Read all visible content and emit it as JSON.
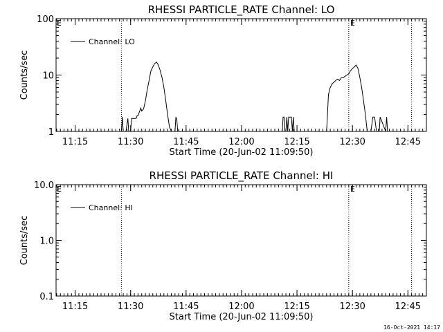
{
  "chart_data": [
    {
      "type": "line",
      "title": "RHESSI PARTICLE_RATE Channel: LO",
      "xlabel": "Start Time (20-Jun-02 11:09:50)",
      "ylabel": "Counts/sec",
      "y_scale": "log",
      "ylim": [
        1,
        100
      ],
      "y_ticks": [
        "1",
        "10",
        "100"
      ],
      "xlim": [
        "11:09:50",
        "12:50:00"
      ],
      "x_ticks": [
        "11:15",
        "11:30",
        "11:45",
        "12:00",
        "12:15",
        "12:30",
        "12:45"
      ],
      "grid": false,
      "legend": {
        "position": "top-left",
        "entries": [
          "Channel: LO"
        ]
      },
      "markers": [
        {
          "time": "11:27:30",
          "label": ""
        },
        {
          "time": "12:29:00",
          "label": "E"
        },
        {
          "time": "12:46:00",
          "label": ""
        }
      ],
      "series": [
        {
          "name": "Channel: LO",
          "x": [
            "11:27:30",
            "11:27:45",
            "11:28:00",
            "11:28:45",
            "11:29:15",
            "11:29:30",
            "11:30:00",
            "11:30:15",
            "11:31:30",
            "11:31:45",
            "11:32:00",
            "11:32:45",
            "11:33:00",
            "11:33:30",
            "11:34:00",
            "11:34:30",
            "11:35:00",
            "11:35:30",
            "11:36:00",
            "11:36:30",
            "11:37:00",
            "11:37:30",
            "11:38:00",
            "11:38:30",
            "11:39:00",
            "11:39:30",
            "11:40:00",
            "11:40:30",
            "11:41:00",
            "11:41:30",
            "11:42:00",
            "11:42:15",
            "11:42:30",
            "11:42:45",
            "12:11:00",
            "12:11:15",
            "12:11:30",
            "12:11:45",
            "12:12:00",
            "12:12:15",
            "12:12:30",
            "12:12:45",
            "12:13:00",
            "12:13:30",
            "12:13:45",
            "12:14:00",
            "12:14:15",
            "12:23:00",
            "12:23:15",
            "12:23:30",
            "12:24:00",
            "12:24:30",
            "12:25:00",
            "12:25:30",
            "12:26:00",
            "12:26:30",
            "12:27:00",
            "12:27:30",
            "12:28:00",
            "12:28:30",
            "12:29:00",
            "12:29:30",
            "12:30:00",
            "12:30:30",
            "12:31:00",
            "12:31:30",
            "12:32:00",
            "12:32:30",
            "12:33:00",
            "12:33:30",
            "12:34:00",
            "12:34:30",
            "12:35:00",
            "12:35:30",
            "12:36:00",
            "12:36:30",
            "12:37:00",
            "12:37:15",
            "12:37:30",
            "12:39:00",
            "12:39:15",
            "12:39:30"
          ],
          "y": [
            1,
            1.8,
            1,
            1,
            1.7,
            1,
            1,
            1.7,
            1.7,
            1.9,
            1.9,
            2.6,
            2.3,
            2.5,
            3.5,
            5.5,
            8,
            12,
            14,
            16,
            17,
            15,
            12,
            9,
            6,
            3.5,
            2,
            1.2,
            1,
            1,
            1,
            1.8,
            1.6,
            1,
            1,
            1.8,
            1.8,
            1,
            1,
            1.8,
            1,
            1.8,
            1.8,
            1.8,
            1,
            1.8,
            1,
            1,
            2,
            4.5,
            6,
            7,
            7.5,
            8,
            8.5,
            8,
            9,
            9,
            9.5,
            10,
            10.5,
            12,
            13,
            14,
            15,
            13,
            9,
            6,
            3.5,
            2,
            1,
            1,
            1,
            1.8,
            1.8,
            1,
            1,
            1,
            1.8,
            1,
            1.8,
            1
          ]
        }
      ]
    },
    {
      "type": "line",
      "title": "RHESSI PARTICLE_RATE Channel: HI",
      "xlabel": "Start Time (20-Jun-02 11:09:50)",
      "ylabel": "Counts/sec",
      "y_scale": "log",
      "ylim": [
        0.1,
        10
      ],
      "y_ticks": [
        "0.1",
        "1.0",
        "10.0"
      ],
      "xlim": [
        "11:09:50",
        "12:50:00"
      ],
      "x_ticks": [
        "11:15",
        "11:30",
        "11:45",
        "12:00",
        "12:15",
        "12:30",
        "12:45"
      ],
      "grid": false,
      "legend": {
        "position": "top-left",
        "entries": [
          "Channel: HI"
        ]
      },
      "markers": [
        {
          "time": "11:27:30",
          "label": ""
        },
        {
          "time": "12:29:00",
          "label": "E"
        },
        {
          "time": "12:46:00",
          "label": ""
        }
      ],
      "series": [
        {
          "name": "Channel: HI",
          "x": [],
          "y": []
        }
      ]
    }
  ],
  "corner_label": "E",
  "footer_stamp": "16-Oct-2021 14:17"
}
